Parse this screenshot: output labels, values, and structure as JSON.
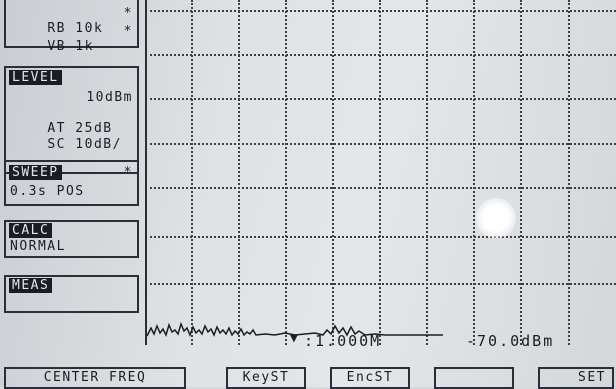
{
  "rb": {
    "label": "RB",
    "value": "10k",
    "flag": "*"
  },
  "vb": {
    "label": "VB",
    "value": "1k",
    "flag": "*"
  },
  "level": {
    "title": "LEVEL",
    "ref": "10dBm",
    "at_label": "AT",
    "at_value": "25dB",
    "sc_label": "SC",
    "sc_value": "10dB/"
  },
  "sweep": {
    "title": "SWEEP",
    "flag": "*",
    "value": "0.3s POS"
  },
  "calc": {
    "title": "CALC",
    "value": "NORMAL"
  },
  "meas": {
    "title": "MEAS"
  },
  "marker": {
    "symbol": "▼",
    "freq": ":1.000M",
    "level": "-70.0dBm"
  },
  "softkeys": [
    "CENTER FREQ",
    "KeyST",
    "EncST",
    "",
    "SET"
  ],
  "icons": {
    "marker": "marker-triangle-icon"
  }
}
